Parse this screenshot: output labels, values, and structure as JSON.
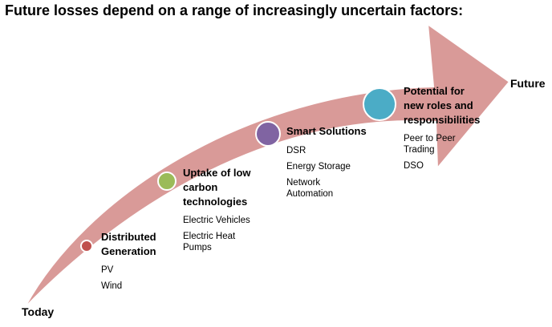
{
  "title": "Future losses depend on a range of increasingly uncertain factors:",
  "start_label": "Today",
  "end_label": "Future",
  "colors": {
    "arrow": "#d99a98",
    "arrow_stroke": "#ffffff",
    "stage_1": "#c0504d",
    "stage_2": "#9bbb59",
    "stage_3": "#8064a2",
    "stage_4": "#4bacc6"
  },
  "stages": [
    {
      "heading": [
        "Distributed",
        "Generation"
      ],
      "items": [
        "PV",
        "Wind"
      ]
    },
    {
      "heading": [
        "Uptake of low",
        "carbon",
        "technologies"
      ],
      "items": [
        "Electric Vehicles",
        "Electric Heat Pumps"
      ]
    },
    {
      "heading": [
        "Smart Solutions"
      ],
      "items": [
        "DSR",
        "Energy Storage",
        "Network Automation"
      ]
    },
    {
      "heading": [
        "Potential for",
        "new roles and",
        "responsibilities"
      ],
      "items": [
        "Peer to Peer Trading",
        "DSO"
      ]
    }
  ]
}
